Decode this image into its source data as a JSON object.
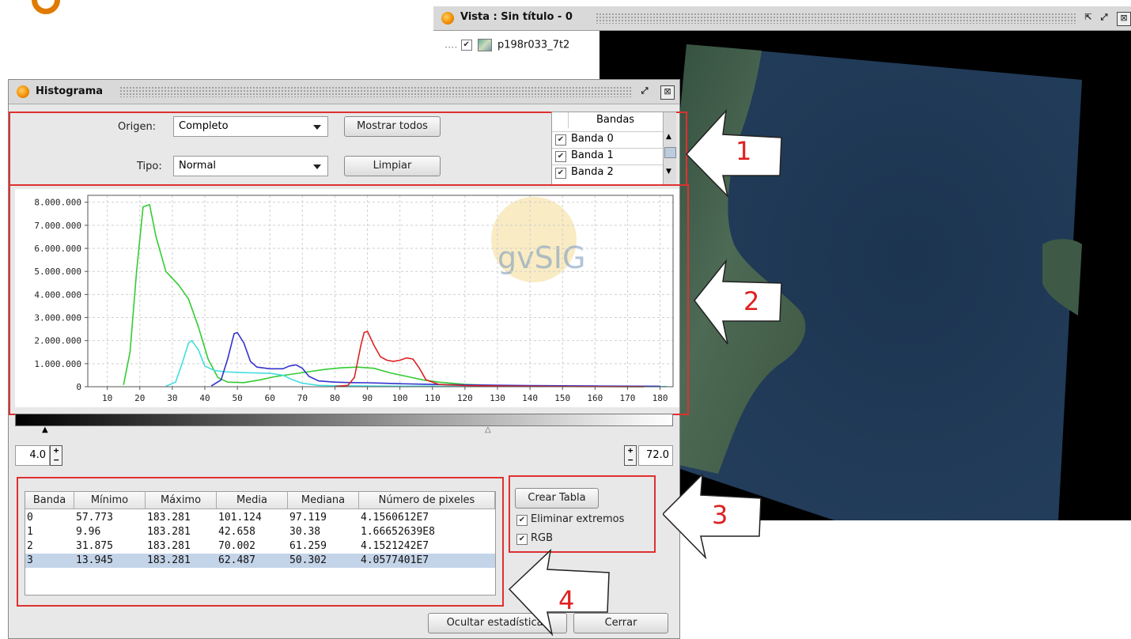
{
  "vista": {
    "title": "Vista : Sin título - 0",
    "layer_name": "p198r033_7t2"
  },
  "histogram": {
    "title": "Histograma",
    "origen_label": "Origen:",
    "origen_value": "Completo",
    "tipo_label": "Tipo:",
    "tipo_value": "Normal",
    "mostrar_todos_label": "Mostrar todos",
    "limpiar_label": "Limpiar",
    "bands_header": "Bandas",
    "bands": [
      {
        "label": "Banda 0",
        "checked": true
      },
      {
        "label": "Banda 1",
        "checked": true
      },
      {
        "label": "Banda 2",
        "checked": true
      }
    ],
    "watermark": "gvSIG",
    "min_value": "4.0",
    "max_value": "72.0",
    "stats": {
      "headers": [
        "Banda",
        "Mínimo",
        "Máximo",
        "Media",
        "Mediana",
        "Número de pixeles"
      ],
      "rows": [
        [
          "0",
          "57.773",
          "183.281",
          "101.124",
          "97.119",
          "4.1560612E7"
        ],
        [
          "1",
          "9.96",
          "183.281",
          "42.658",
          "30.38",
          "1.66652639E8"
        ],
        [
          "2",
          "31.875",
          "183.281",
          "70.002",
          "61.259",
          "4.1521242E7"
        ],
        [
          "3",
          "13.945",
          "183.281",
          "62.487",
          "50.302",
          "4.0577401E7"
        ]
      ],
      "selected_row": 3
    },
    "crear_tabla_label": "Crear Tabla",
    "eliminar_extremos_label": "Eliminar extremos",
    "rgb_label": "RGB",
    "ocultar_label": "Ocultar estadísticas",
    "cerrar_label": "Cerrar"
  },
  "annotations": [
    "1",
    "2",
    "3",
    "4"
  ],
  "chart_data": {
    "type": "line",
    "x_ticks": [
      10,
      20,
      30,
      40,
      50,
      60,
      70,
      80,
      90,
      100,
      110,
      120,
      130,
      140,
      150,
      160,
      170,
      180
    ],
    "y_ticks": [
      "0",
      "1.000.000",
      "2.000.000",
      "3.000.000",
      "4.000.000",
      "5.000.000",
      "6.000.000",
      "7.000.000",
      "8.000.000"
    ],
    "xlim": [
      4,
      184
    ],
    "ylim": [
      0,
      8300000
    ],
    "grid": true,
    "series": [
      {
        "color": "#33cc33",
        "points": [
          [
            15,
            80000
          ],
          [
            17,
            1500000
          ],
          [
            19,
            5000000
          ],
          [
            21,
            7800000
          ],
          [
            23,
            7900000
          ],
          [
            25,
            6500000
          ],
          [
            28,
            5000000
          ],
          [
            32,
            4400000
          ],
          [
            35,
            3800000
          ],
          [
            38,
            2600000
          ],
          [
            41,
            1200000
          ],
          [
            44,
            400000
          ],
          [
            47,
            200000
          ],
          [
            52,
            180000
          ],
          [
            57,
            300000
          ],
          [
            62,
            450000
          ],
          [
            67,
            550000
          ],
          [
            72,
            650000
          ],
          [
            77,
            750000
          ],
          [
            82,
            820000
          ],
          [
            87,
            850000
          ],
          [
            92,
            800000
          ],
          [
            97,
            600000
          ],
          [
            102,
            450000
          ],
          [
            107,
            300000
          ],
          [
            112,
            200000
          ],
          [
            120,
            100000
          ],
          [
            130,
            50000
          ],
          [
            145,
            20000
          ],
          [
            160,
            10000
          ],
          [
            175,
            5000
          ]
        ]
      },
      {
        "color": "#44dddd",
        "points": [
          [
            28,
            20000
          ],
          [
            31,
            200000
          ],
          [
            33,
            1000000
          ],
          [
            35,
            1900000
          ],
          [
            36,
            2000000
          ],
          [
            38,
            1600000
          ],
          [
            40,
            900000
          ],
          [
            43,
            700000
          ],
          [
            46,
            650000
          ],
          [
            50,
            620000
          ],
          [
            55,
            600000
          ],
          [
            60,
            580000
          ],
          [
            64,
            500000
          ],
          [
            67,
            300000
          ],
          [
            70,
            150000
          ],
          [
            75,
            60000
          ],
          [
            80,
            40000
          ],
          [
            90,
            30000
          ],
          [
            100,
            25000
          ],
          [
            120,
            20000
          ],
          [
            140,
            15000
          ],
          [
            160,
            10000
          ],
          [
            182,
            8000
          ]
        ]
      },
      {
        "color": "#3333cc",
        "points": [
          [
            42,
            30000
          ],
          [
            45,
            300000
          ],
          [
            47,
            1200000
          ],
          [
            49,
            2300000
          ],
          [
            50,
            2350000
          ],
          [
            52,
            1900000
          ],
          [
            54,
            1100000
          ],
          [
            56,
            850000
          ],
          [
            60,
            780000
          ],
          [
            64,
            780000
          ],
          [
            66,
            900000
          ],
          [
            68,
            950000
          ],
          [
            70,
            800000
          ],
          [
            72,
            450000
          ],
          [
            75,
            250000
          ],
          [
            80,
            200000
          ],
          [
            85,
            180000
          ],
          [
            90,
            170000
          ],
          [
            95,
            150000
          ],
          [
            100,
            130000
          ],
          [
            110,
            100000
          ],
          [
            120,
            80000
          ],
          [
            140,
            50000
          ],
          [
            160,
            30000
          ],
          [
            180,
            20000
          ]
        ]
      },
      {
        "color": "#dd2222",
        "points": [
          [
            80,
            10000
          ],
          [
            84,
            60000
          ],
          [
            86,
            400000
          ],
          [
            88,
            1800000
          ],
          [
            89,
            2350000
          ],
          [
            90,
            2400000
          ],
          [
            92,
            1800000
          ],
          [
            94,
            1300000
          ],
          [
            96,
            1150000
          ],
          [
            98,
            1100000
          ],
          [
            100,
            1150000
          ],
          [
            102,
            1250000
          ],
          [
            104,
            1200000
          ],
          [
            106,
            800000
          ],
          [
            108,
            300000
          ],
          [
            112,
            100000
          ],
          [
            120,
            50000
          ],
          [
            130,
            30000
          ],
          [
            145,
            15000
          ],
          [
            160,
            8000
          ],
          [
            175,
            4000
          ]
        ]
      }
    ]
  }
}
